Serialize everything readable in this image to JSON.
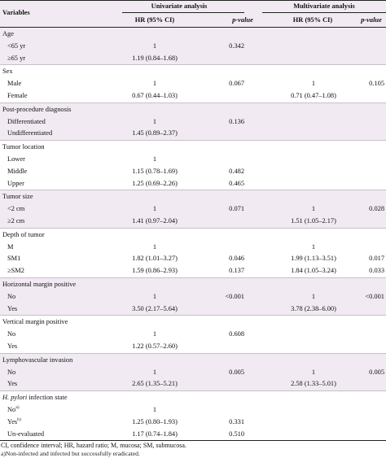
{
  "header": {
    "variables": "Variables",
    "univariate": "Univariate analysis",
    "multivariate": "Multivariate analysis",
    "hr": "HR (95% CI)",
    "p": "p-value"
  },
  "groups": [
    {
      "title": "Age",
      "rows": [
        {
          "label": "<65 yr",
          "hr1": "1",
          "p1": "0.342",
          "hr2": "",
          "p2": ""
        },
        {
          "label": "≥65 yr",
          "hr1": "1.19 (0.84–1.68)",
          "p1": "",
          "hr2": "",
          "p2": ""
        }
      ]
    },
    {
      "title": "Sex",
      "rows": [
        {
          "label": "Male",
          "hr1": "1",
          "p1": "0.067",
          "hr2": "1",
          "p2": "0.105"
        },
        {
          "label": "Female",
          "hr1": "0.67 (0.44–1.03)",
          "p1": "",
          "hr2": "0.71 (0.47–1.08)",
          "p2": ""
        }
      ]
    },
    {
      "title": "Post-procedure diagnosis",
      "rows": [
        {
          "label": "Differentiated",
          "hr1": "1",
          "p1": "0.136",
          "hr2": "",
          "p2": ""
        },
        {
          "label": "Undifferentiated",
          "hr1": "1.45 (0.89–2.37)",
          "p1": "",
          "hr2": "",
          "p2": ""
        }
      ]
    },
    {
      "title": "Tumor location",
      "rows": [
        {
          "label": "Lower",
          "hr1": "1",
          "p1": "",
          "hr2": "",
          "p2": ""
        },
        {
          "label": "Middle",
          "hr1": "1.15 (0.78–1.69)",
          "p1": "0.482",
          "hr2": "",
          "p2": ""
        },
        {
          "label": "Upper",
          "hr1": "1.25 (0.69–2.26)",
          "p1": "0.465",
          "hr2": "",
          "p2": ""
        }
      ]
    },
    {
      "title": "Tumor size",
      "rows": [
        {
          "label": "<2 cm",
          "hr1": "1",
          "p1": "0.071",
          "hr2": "1",
          "p2": "0.028"
        },
        {
          "label": "≥2 cm",
          "hr1": "1.41 (0.97–2.04)",
          "p1": "",
          "hr2": "1.51 (1.05–2.17)",
          "p2": ""
        }
      ]
    },
    {
      "title": "Depth of tumor",
      "rows": [
        {
          "label": "M",
          "hr1": "1",
          "p1": "",
          "hr2": "1",
          "p2": ""
        },
        {
          "label": "SM1",
          "hr1": "1.82 (1.01–3.27)",
          "p1": "0.046",
          "hr2": "1.99 (1.13–3.51)",
          "p2": "0.017"
        },
        {
          "label": "≥SM2",
          "hr1": "1.59 (0.86–2.93)",
          "p1": "0.137",
          "hr2": "1.84 (1.05–3.24)",
          "p2": "0.033"
        }
      ]
    },
    {
      "title": "Horizontal margin positive",
      "rows": [
        {
          "label": "No",
          "hr1": "1",
          "p1": "<0.001",
          "hr2": "1",
          "p2": "<0.001"
        },
        {
          "label": "Yes",
          "hr1": "3.50 (2.17–5.64)",
          "p1": "",
          "hr2": "3.78 (2.38–6.00)",
          "p2": ""
        }
      ]
    },
    {
      "title": "Vertical margin positive",
      "rows": [
        {
          "label": "No",
          "hr1": "1",
          "p1": "0.608",
          "hr2": "",
          "p2": ""
        },
        {
          "label": "Yes",
          "hr1": "1.22 (0.57–2.60)",
          "p1": "",
          "hr2": "",
          "p2": ""
        }
      ]
    },
    {
      "title": "Lymphovascular invasion",
      "rows": [
        {
          "label": "No",
          "hr1": "1",
          "p1": "0.005",
          "hr2": "1",
          "p2": "0.005"
        },
        {
          "label": "Yes",
          "hr1": "2.65 (1.35–5.21)",
          "p1": "",
          "hr2": "2.58 (1.33–5.01)",
          "p2": ""
        }
      ]
    },
    {
      "title": "H. pylori",
      "title_rest": " infection state",
      "rows": [
        {
          "label": "No",
          "sup": "a)",
          "hr1": "1",
          "p1": "",
          "hr2": "",
          "p2": ""
        },
        {
          "label": "Yes",
          "sup": "b)",
          "hr1": "1.25 (0.80–1.93)",
          "p1": "0.331",
          "hr2": "",
          "p2": ""
        },
        {
          "label": "Un-evaluated",
          "hr1": "1.17 (0.74–1.84)",
          "p1": "0.510",
          "hr2": "",
          "p2": ""
        }
      ]
    }
  ],
  "footnote": "CI, confidence interval; HR, hazard ratio; M, mucosa; SM, submucosa.",
  "footnote2": "a)Non-infected and infected but successfully eradicated."
}
